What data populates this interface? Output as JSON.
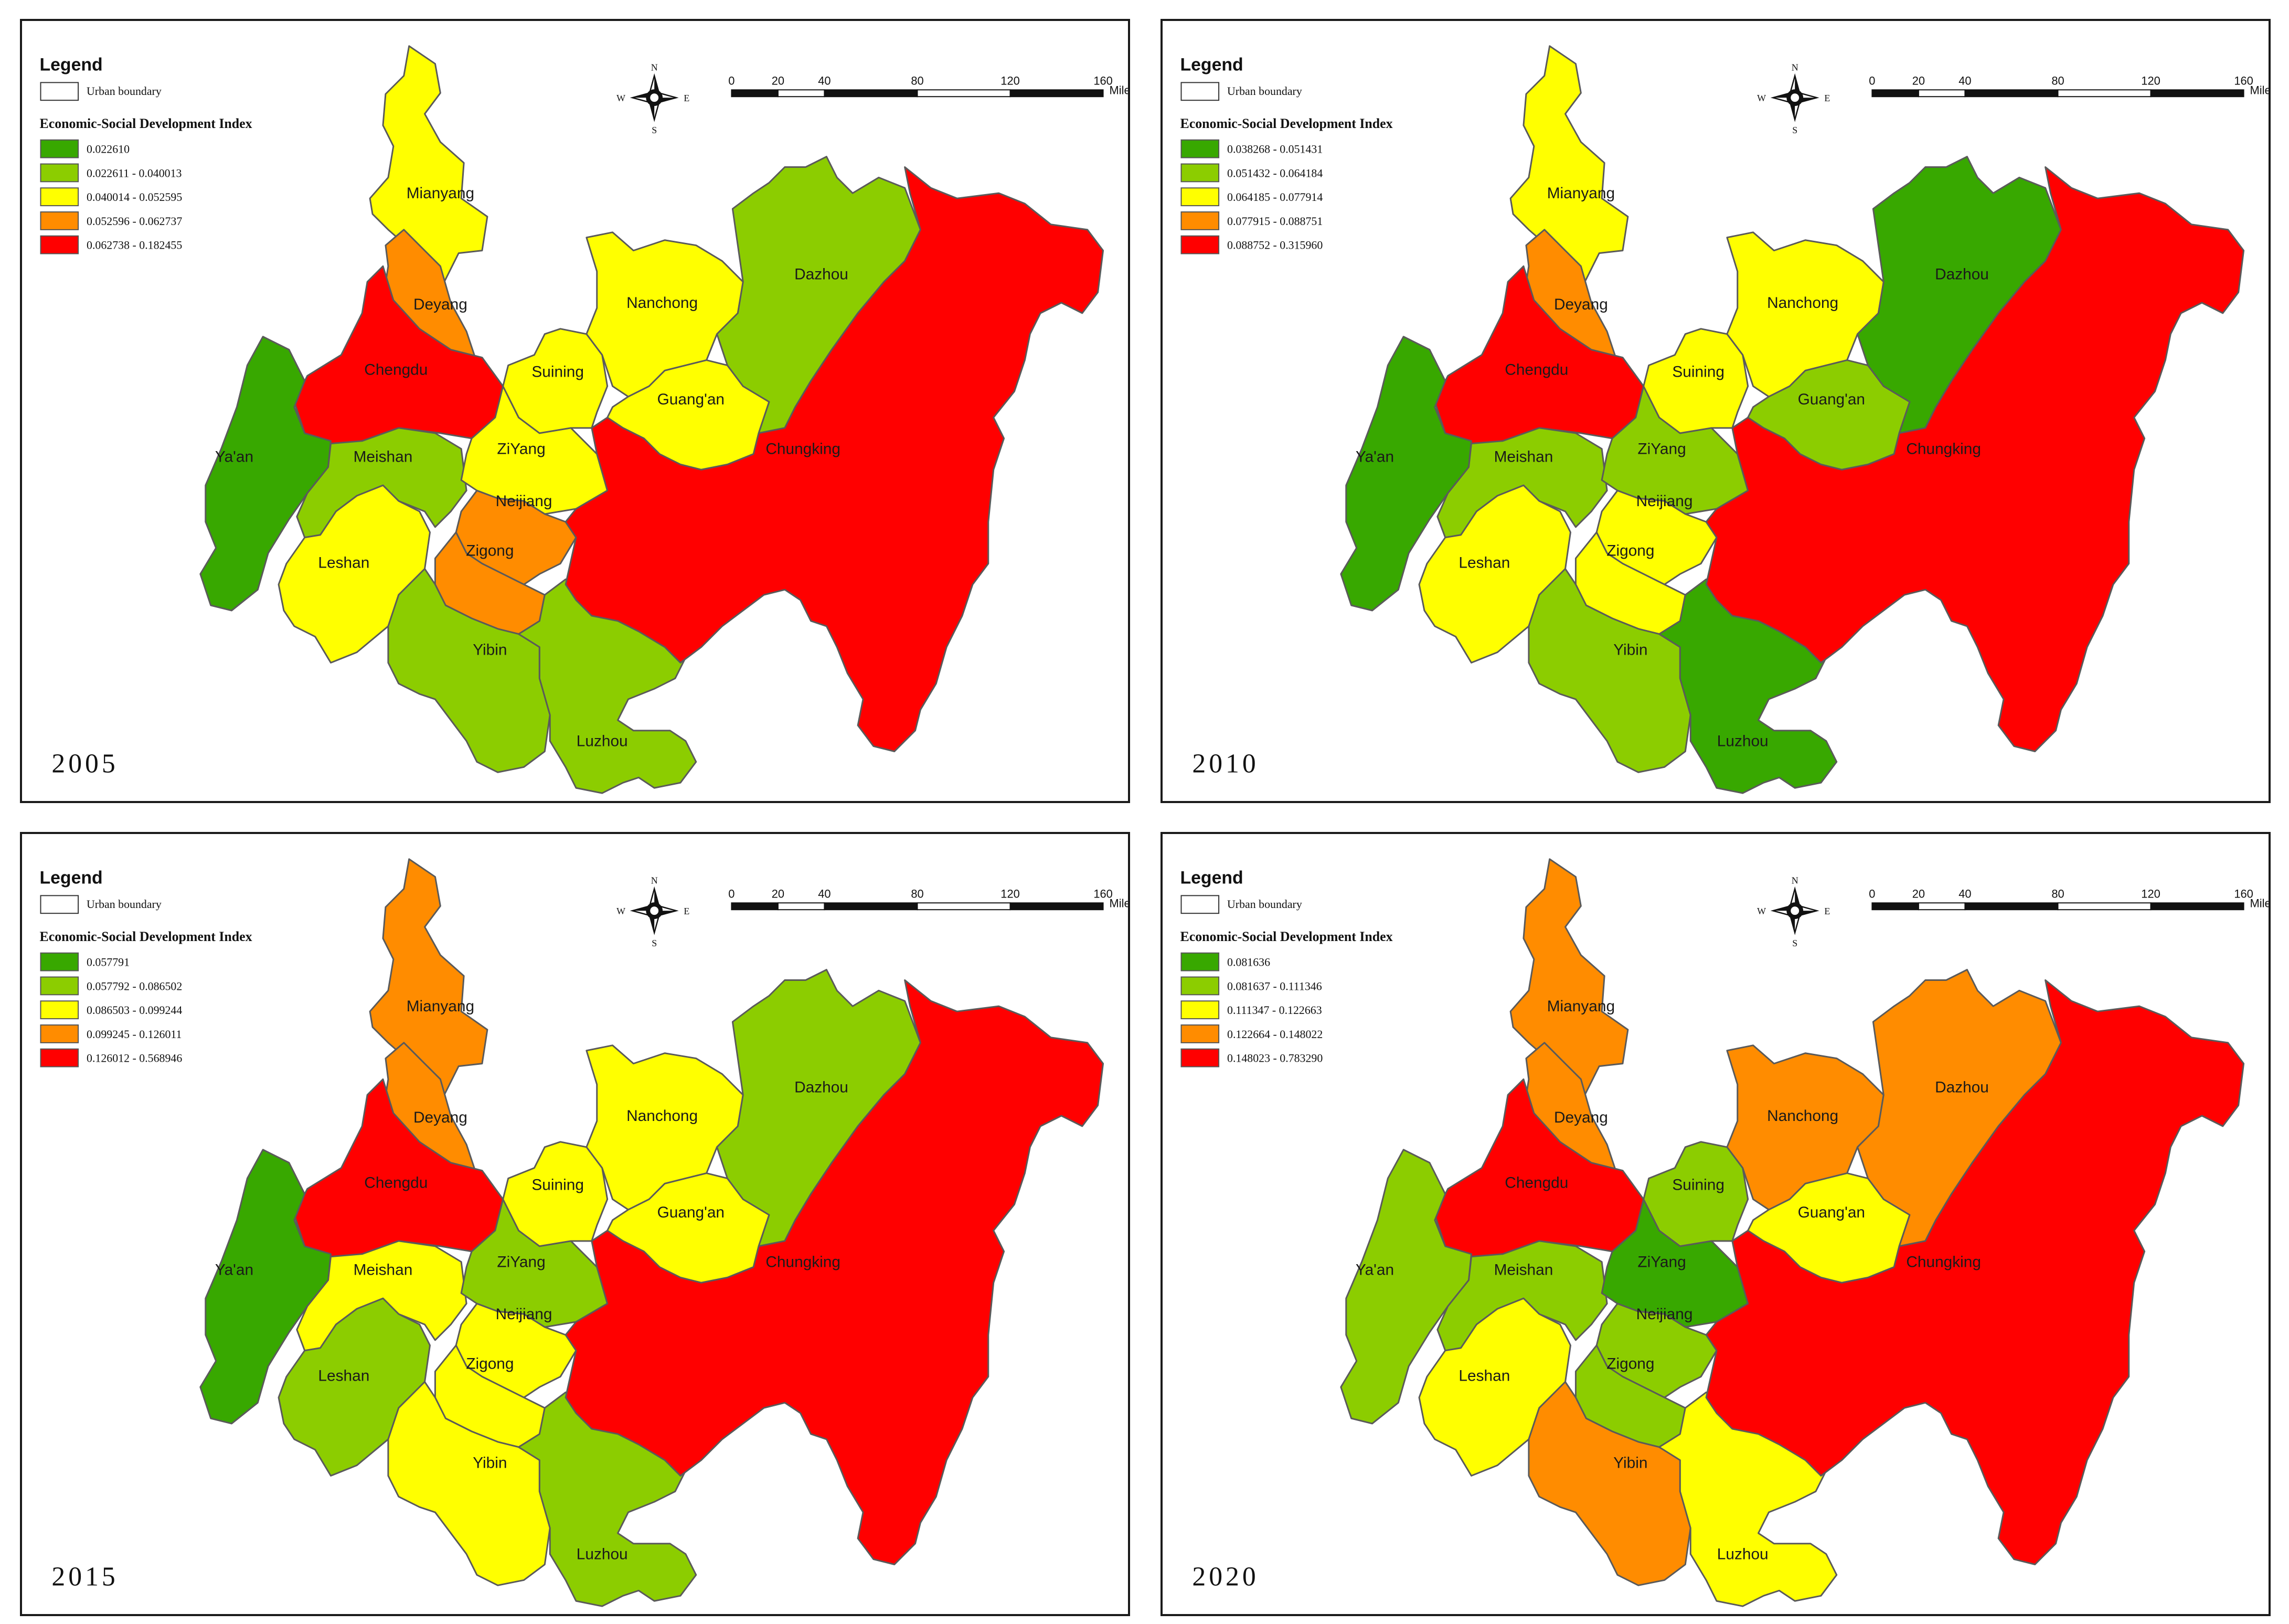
{
  "legend": {
    "title": "Legend",
    "boundary_label": "Urban boundary",
    "index_title": "Economic-Social Development Index"
  },
  "scale_bar": {
    "ticks": [
      "0",
      "20",
      "40",
      "80",
      "120",
      "160"
    ],
    "unit": "Miles"
  },
  "compass": {
    "n": "N",
    "s": "S",
    "e": "E",
    "w": "W"
  },
  "class_colors": [
    "#38a800",
    "#8ccd00",
    "#ffff00",
    "#ff8c00",
    "#ff0000"
  ],
  "panels": [
    {
      "year": "2005",
      "legend_classes": [
        "0.022610",
        "0.022611 - 0.040013",
        "0.040014 - 0.052595",
        "0.052596 - 0.062737",
        "0.062738 - 0.182455"
      ],
      "regions": {
        "mianyang": 2,
        "deyang": 3,
        "chengdu": 4,
        "yaan": 0,
        "meishan": 1,
        "leshan": 2,
        "ziyang": 2,
        "neijiang": 3,
        "zigong": 3,
        "yibin": 1,
        "luzhou": 1,
        "suining": 2,
        "nanchong": 2,
        "guangan": 2,
        "dazhou": 1,
        "chungking": 4
      }
    },
    {
      "year": "2010",
      "legend_classes": [
        "0.038268 - 0.051431",
        "0.051432 - 0.064184",
        "0.064185 - 0.077914",
        "0.077915 - 0.088751",
        "0.088752 - 0.315960"
      ],
      "regions": {
        "mianyang": 2,
        "deyang": 3,
        "chengdu": 4,
        "yaan": 0,
        "meishan": 1,
        "leshan": 2,
        "ziyang": 1,
        "neijiang": 2,
        "zigong": 2,
        "yibin": 1,
        "luzhou": 0,
        "suining": 2,
        "nanchong": 2,
        "guangan": 1,
        "dazhou": 0,
        "chungking": 4
      }
    },
    {
      "year": "2015",
      "legend_classes": [
        "0.057791",
        "0.057792 - 0.086502",
        "0.086503 - 0.099244",
        "0.099245 - 0.126011",
        "0.126012 - 0.568946"
      ],
      "regions": {
        "mianyang": 3,
        "deyang": 3,
        "chengdu": 4,
        "yaan": 0,
        "meishan": 2,
        "leshan": 1,
        "ziyang": 1,
        "neijiang": 2,
        "zigong": 2,
        "yibin": 2,
        "luzhou": 1,
        "suining": 2,
        "nanchong": 2,
        "guangan": 2,
        "dazhou": 1,
        "chungking": 4
      }
    },
    {
      "year": "2020",
      "legend_classes": [
        "0.081636",
        "0.081637 - 0.111346",
        "0.111347 - 0.122663",
        "0.122664 - 0.148022",
        "0.148023 - 0.783290"
      ],
      "regions": {
        "mianyang": 3,
        "deyang": 3,
        "chengdu": 4,
        "yaan": 1,
        "meishan": 1,
        "leshan": 2,
        "ziyang": 0,
        "neijiang": 1,
        "zigong": 1,
        "yibin": 3,
        "luzhou": 2,
        "suining": 1,
        "nanchong": 3,
        "guangan": 2,
        "dazhou": 3,
        "chungking": 4
      }
    }
  ],
  "city_names": {
    "mianyang": "Mianyang",
    "deyang": "Deyang",
    "chengdu": "Chengdu",
    "yaan": "Ya'an",
    "meishan": "Meishan",
    "leshan": "Leshan",
    "ziyang": "ZiYang",
    "neijiang": "Neijiang",
    "zigong": "Zigong",
    "yibin": "Yibin",
    "luzhou": "Luzhou",
    "suining": "Suining",
    "nanchong": "Nanchong",
    "guangan": "Guang'an",
    "dazhou": "Dazhou",
    "chungking": "Chungking"
  }
}
